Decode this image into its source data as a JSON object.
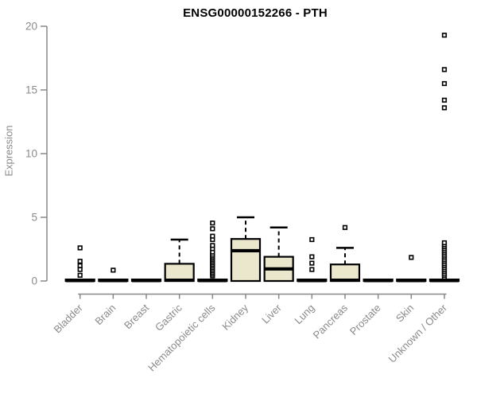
{
  "chart_data": {
    "type": "boxplot",
    "title": "ENSG00000152266 - PTH",
    "ylabel": "Expression",
    "xlabel": "",
    "ylim": [
      0,
      20
    ],
    "yticks": [
      0,
      5,
      10,
      15,
      20
    ],
    "grid": false,
    "legend": "none",
    "categories": [
      "Bladder",
      "Brain",
      "Breast",
      "Gastric",
      "Hematopoietic cells",
      "Kidney",
      "Liver",
      "Lung",
      "Pancreas",
      "Prostate",
      "Skin",
      "Unknown / Other"
    ],
    "boxes": [
      {
        "category": "Bladder",
        "q1": 0,
        "median": 0.04,
        "q3": 0.12,
        "whisker_low": 0,
        "whisker_high": 0.12,
        "outliers": [
          0.45,
          0.9,
          1.2,
          1.55,
          2.6
        ]
      },
      {
        "category": "Brain",
        "q1": 0,
        "median": 0.04,
        "q3": 0.12,
        "whisker_low": 0,
        "whisker_high": 0.12,
        "outliers": [
          0.85
        ]
      },
      {
        "category": "Breast",
        "q1": 0,
        "median": 0.04,
        "q3": 0.12,
        "whisker_low": 0,
        "whisker_high": 0.12,
        "outliers": []
      },
      {
        "category": "Gastric",
        "q1": 0,
        "median": 0.06,
        "q3": 1.35,
        "whisker_low": 0,
        "whisker_high": 3.25,
        "outliers": []
      },
      {
        "category": "Hematopoietic cells",
        "q1": 0,
        "median": 0.04,
        "q3": 0.12,
        "whisker_low": 0,
        "whisker_high": 0.12,
        "outliers": [
          0.4,
          0.53,
          0.66,
          0.79,
          0.92,
          1.05,
          1.18,
          1.31,
          1.44,
          1.57,
          1.7,
          1.83,
          1.96,
          2.1,
          2.27,
          2.54,
          2.79,
          3.25,
          3.52,
          4.1,
          4.55
        ]
      },
      {
        "category": "Kidney",
        "q1": 0,
        "median": 2.38,
        "q3": 3.3,
        "whisker_low": 0,
        "whisker_high": 5.0,
        "outliers": []
      },
      {
        "category": "Liver",
        "q1": 0,
        "median": 0.95,
        "q3": 1.9,
        "whisker_low": 0,
        "whisker_high": 4.2,
        "outliers": []
      },
      {
        "category": "Lung",
        "q1": 0,
        "median": 0.04,
        "q3": 0.12,
        "whisker_low": 0,
        "whisker_high": 0.12,
        "outliers": [
          0.9,
          1.4,
          1.9,
          3.25
        ]
      },
      {
        "category": "Pancreas",
        "q1": 0,
        "median": 0.06,
        "q3": 1.3,
        "whisker_low": 0,
        "whisker_high": 2.6,
        "outliers": [
          4.2
        ]
      },
      {
        "category": "Prostate",
        "q1": 0,
        "median": 0.04,
        "q3": 0.12,
        "whisker_low": 0,
        "whisker_high": 0.12,
        "outliers": []
      },
      {
        "category": "Skin",
        "q1": 0,
        "median": 0.04,
        "q3": 0.12,
        "whisker_low": 0,
        "whisker_high": 0.12,
        "outliers": [
          1.85
        ]
      },
      {
        "category": "Unknown / Other",
        "q1": 0,
        "median": 0.04,
        "q3": 0.12,
        "whisker_low": 0,
        "whisker_high": 0.12,
        "outliers": [
          0.3,
          0.45,
          0.6,
          0.75,
          0.9,
          1.05,
          1.2,
          1.35,
          1.5,
          1.65,
          1.8,
          1.95,
          2.1,
          2.25,
          2.4,
          2.55,
          2.7,
          2.85,
          3.0,
          13.6,
          14.2,
          15.5,
          16.6,
          19.3
        ]
      }
    ],
    "colors": {
      "box_fill": "#ebe7cc",
      "box_stroke": "#000000",
      "median": "#000000",
      "whisker": "#000000",
      "outlier_stroke": "#000000",
      "outlier_fill": "#ffffff",
      "axis": "#888888",
      "tick_label": "#8a8a8a",
      "title": "#000000",
      "background": "#ffffff"
    }
  }
}
